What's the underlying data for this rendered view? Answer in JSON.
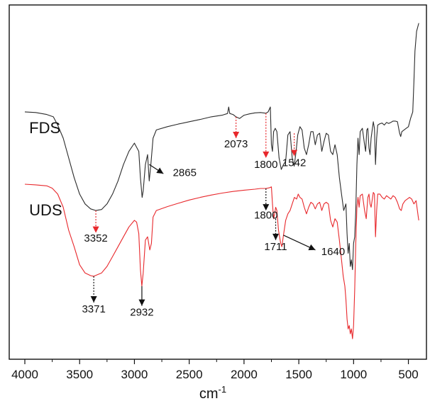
{
  "chart_data": {
    "type": "line",
    "xlabel": "cm",
    "xlabel_superscript": "-1",
    "xlim": [
      4000,
      400
    ],
    "x_reversed": true,
    "xticks": [
      4000,
      3500,
      3000,
      2500,
      2000,
      1500,
      1000,
      500
    ],
    "y_axis": "hidden",
    "colors": {
      "FDS": "#2b2b2b",
      "UDS": "#e8282c",
      "annotation_red": "#e8282c",
      "annotation_black": "#111111"
    },
    "series": [
      {
        "name": "FDS",
        "color": "#2b2b2b",
        "points": [
          [
            4000,
            0.72
          ],
          [
            3900,
            0.718
          ],
          [
            3800,
            0.712
          ],
          [
            3740,
            0.705
          ],
          [
            3700,
            0.68
          ],
          [
            3650,
            0.64
          ],
          [
            3600,
            0.58
          ],
          [
            3550,
            0.52
          ],
          [
            3500,
            0.47
          ],
          [
            3450,
            0.44
          ],
          [
            3400,
            0.425
          ],
          [
            3352,
            0.42
          ],
          [
            3300,
            0.423
          ],
          [
            3250,
            0.44
          ],
          [
            3200,
            0.47
          ],
          [
            3150,
            0.51
          ],
          [
            3100,
            0.56
          ],
          [
            3050,
            0.6
          ],
          [
            3000,
            0.625
          ],
          [
            2960,
            0.6
          ],
          [
            2945,
            0.52
          ],
          [
            2930,
            0.46
          ],
          [
            2920,
            0.48
          ],
          [
            2900,
            0.56
          ],
          [
            2880,
            0.59
          ],
          [
            2865,
            0.51
          ],
          [
            2850,
            0.56
          ],
          [
            2830,
            0.64
          ],
          [
            2800,
            0.665
          ],
          [
            2700,
            0.675
          ],
          [
            2600,
            0.683
          ],
          [
            2500,
            0.69
          ],
          [
            2400,
            0.697
          ],
          [
            2300,
            0.705
          ],
          [
            2200,
            0.71
          ],
          [
            2150,
            0.715
          ],
          [
            2140,
            0.735
          ],
          [
            2130,
            0.715
          ],
          [
            2100,
            0.712
          ],
          [
            2073,
            0.705
          ],
          [
            2040,
            0.7
          ],
          [
            2000,
            0.71
          ],
          [
            1950,
            0.714
          ],
          [
            1900,
            0.717
          ],
          [
            1850,
            0.718
          ],
          [
            1800,
            0.716
          ],
          [
            1780,
            0.72
          ],
          [
            1760,
            0.735
          ],
          [
            1750,
            0.62
          ],
          [
            1740,
            0.6
          ],
          [
            1730,
            0.66
          ],
          [
            1715,
            0.67
          ],
          [
            1700,
            0.66
          ],
          [
            1680,
            0.58
          ],
          [
            1660,
            0.545
          ],
          [
            1640,
            0.56
          ],
          [
            1620,
            0.57
          ],
          [
            1600,
            0.65
          ],
          [
            1580,
            0.66
          ],
          [
            1560,
            0.58
          ],
          [
            1542,
            0.555
          ],
          [
            1525,
            0.6
          ],
          [
            1510,
            0.65
          ],
          [
            1490,
            0.675
          ],
          [
            1470,
            0.665
          ],
          [
            1450,
            0.61
          ],
          [
            1430,
            0.59
          ],
          [
            1410,
            0.62
          ],
          [
            1390,
            0.66
          ],
          [
            1370,
            0.66
          ],
          [
            1350,
            0.62
          ],
          [
            1330,
            0.65
          ],
          [
            1310,
            0.655
          ],
          [
            1290,
            0.6
          ],
          [
            1270,
            0.63
          ],
          [
            1250,
            0.655
          ],
          [
            1230,
            0.65
          ],
          [
            1210,
            0.6
          ],
          [
            1190,
            0.59
          ],
          [
            1170,
            0.62
          ],
          [
            1150,
            0.59
          ],
          [
            1130,
            0.52
          ],
          [
            1110,
            0.47
          ],
          [
            1090,
            0.42
          ],
          [
            1070,
            0.44
          ],
          [
            1060,
            0.35
          ],
          [
            1050,
            0.29
          ],
          [
            1040,
            0.32
          ],
          [
            1030,
            0.25
          ],
          [
            1020,
            0.27
          ],
          [
            1010,
            0.24
          ],
          [
            1000,
            0.32
          ],
          [
            990,
            0.34
          ],
          [
            980,
            0.42
          ],
          [
            970,
            0.56
          ],
          [
            960,
            0.64
          ],
          [
            950,
            0.59
          ],
          [
            940,
            0.66
          ],
          [
            920,
            0.67
          ],
          [
            900,
            0.62
          ],
          [
            890,
            0.6
          ],
          [
            880,
            0.665
          ],
          [
            870,
            0.67
          ],
          [
            860,
            0.61
          ],
          [
            850,
            0.59
          ],
          [
            840,
            0.64
          ],
          [
            820,
            0.69
          ],
          [
            810,
            0.67
          ],
          [
            800,
            0.56
          ],
          [
            790,
            0.64
          ],
          [
            780,
            0.68
          ],
          [
            760,
            0.684
          ],
          [
            740,
            0.686
          ],
          [
            720,
            0.68
          ],
          [
            700,
            0.688
          ],
          [
            680,
            0.685
          ],
          [
            660,
            0.688
          ],
          [
            640,
            0.692
          ],
          [
            620,
            0.692
          ],
          [
            600,
            0.69
          ],
          [
            580,
            0.655
          ],
          [
            570,
            0.645
          ],
          [
            560,
            0.66
          ],
          [
            540,
            0.665
          ],
          [
            520,
            0.67
          ],
          [
            500,
            0.675
          ],
          [
            480,
            0.7
          ],
          [
            460,
            0.72
          ],
          [
            450,
            0.81
          ],
          [
            440,
            0.905
          ],
          [
            425,
            0.965
          ],
          [
            405,
            0.99
          ]
        ]
      },
      {
        "name": "UDS",
        "color": "#e8282c",
        "points": [
          [
            4000,
            0.5
          ],
          [
            3900,
            0.498
          ],
          [
            3800,
            0.495
          ],
          [
            3750,
            0.488
          ],
          [
            3700,
            0.47
          ],
          [
            3650,
            0.43
          ],
          [
            3600,
            0.36
          ],
          [
            3550,
            0.31
          ],
          [
            3500,
            0.255
          ],
          [
            3450,
            0.23
          ],
          [
            3400,
            0.222
          ],
          [
            3371,
            0.22
          ],
          [
            3300,
            0.23
          ],
          [
            3250,
            0.25
          ],
          [
            3200,
            0.28
          ],
          [
            3150,
            0.31
          ],
          [
            3100,
            0.34
          ],
          [
            3050,
            0.37
          ],
          [
            3000,
            0.39
          ],
          [
            2980,
            0.385
          ],
          [
            2960,
            0.35
          ],
          [
            2945,
            0.24
          ],
          [
            2932,
            0.19
          ],
          [
            2920,
            0.23
          ],
          [
            2900,
            0.33
          ],
          [
            2880,
            0.34
          ],
          [
            2860,
            0.3
          ],
          [
            2845,
            0.32
          ],
          [
            2830,
            0.4
          ],
          [
            2800,
            0.42
          ],
          [
            2700,
            0.432
          ],
          [
            2600,
            0.442
          ],
          [
            2500,
            0.452
          ],
          [
            2400,
            0.46
          ],
          [
            2300,
            0.467
          ],
          [
            2200,
            0.473
          ],
          [
            2100,
            0.478
          ],
          [
            2000,
            0.482
          ],
          [
            1900,
            0.485
          ],
          [
            1850,
            0.487
          ],
          [
            1800,
            0.487
          ],
          [
            1770,
            0.489
          ],
          [
            1750,
            0.492
          ],
          [
            1740,
            0.44
          ],
          [
            1730,
            0.395
          ],
          [
            1720,
            0.41
          ],
          [
            1711,
            0.43
          ],
          [
            1700,
            0.42
          ],
          [
            1685,
            0.36
          ],
          [
            1665,
            0.32
          ],
          [
            1655,
            0.31
          ],
          [
            1640,
            0.345
          ],
          [
            1620,
            0.39
          ],
          [
            1600,
            0.41
          ],
          [
            1580,
            0.42
          ],
          [
            1560,
            0.44
          ],
          [
            1540,
            0.46
          ],
          [
            1520,
            0.455
          ],
          [
            1505,
            0.47
          ],
          [
            1490,
            0.46
          ],
          [
            1470,
            0.455
          ],
          [
            1450,
            0.43
          ],
          [
            1430,
            0.41
          ],
          [
            1410,
            0.43
          ],
          [
            1390,
            0.445
          ],
          [
            1370,
            0.44
          ],
          [
            1350,
            0.425
          ],
          [
            1330,
            0.44
          ],
          [
            1310,
            0.445
          ],
          [
            1290,
            0.42
          ],
          [
            1270,
            0.44
          ],
          [
            1250,
            0.445
          ],
          [
            1230,
            0.44
          ],
          [
            1210,
            0.39
          ],
          [
            1190,
            0.37
          ],
          [
            1170,
            0.395
          ],
          [
            1150,
            0.385
          ],
          [
            1130,
            0.33
          ],
          [
            1110,
            0.27
          ],
          [
            1095,
            0.22
          ],
          [
            1080,
            0.19
          ],
          [
            1070,
            0.15
          ],
          [
            1060,
            0.09
          ],
          [
            1050,
            0.06
          ],
          [
            1040,
            0.07
          ],
          [
            1030,
            0.045
          ],
          [
            1020,
            0.06
          ],
          [
            1010,
            0.03
          ],
          [
            1000,
            0.07
          ],
          [
            990,
            0.18
          ],
          [
            980,
            0.32
          ],
          [
            970,
            0.43
          ],
          [
            960,
            0.46
          ],
          [
            950,
            0.43
          ],
          [
            940,
            0.465
          ],
          [
            920,
            0.47
          ],
          [
            900,
            0.42
          ],
          [
            885,
            0.395
          ],
          [
            870,
            0.46
          ],
          [
            860,
            0.47
          ],
          [
            850,
            0.44
          ],
          [
            840,
            0.43
          ],
          [
            820,
            0.475
          ],
          [
            810,
            0.47
          ],
          [
            800,
            0.34
          ],
          [
            790,
            0.42
          ],
          [
            780,
            0.47
          ],
          [
            760,
            0.47
          ],
          [
            740,
            0.46
          ],
          [
            720,
            0.455
          ],
          [
            700,
            0.465
          ],
          [
            680,
            0.46
          ],
          [
            660,
            0.455
          ],
          [
            640,
            0.465
          ],
          [
            620,
            0.46
          ],
          [
            600,
            0.445
          ],
          [
            580,
            0.425
          ],
          [
            565,
            0.42
          ],
          [
            550,
            0.44
          ],
          [
            530,
            0.45
          ],
          [
            510,
            0.455
          ],
          [
            490,
            0.46
          ],
          [
            470,
            0.455
          ],
          [
            450,
            0.44
          ],
          [
            430,
            0.45
          ],
          [
            410,
            0.4
          ],
          [
            405,
            0.39
          ]
        ]
      }
    ],
    "series_labels": [
      {
        "text": "FDS",
        "at_x": 3960,
        "at_y": 0.655
      },
      {
        "text": "UDS",
        "at_x": 3960,
        "at_y": 0.405
      }
    ],
    "annotations": [
      {
        "label": "3352",
        "x": 3352,
        "arrow_from_y": 0.42,
        "arrow_to_y": 0.352,
        "label_y": 0.325,
        "label_dx": 0,
        "style": "red-dotted"
      },
      {
        "label": "2865",
        "x": 2865,
        "arrow_from_y": 0.56,
        "arrow_to_y": 0.532,
        "arrow_dx": 20,
        "label_y": 0.525,
        "label_dx": 50,
        "style": "black-solid"
      },
      {
        "label": "2073",
        "x": 2073,
        "arrow_from_y": 0.705,
        "arrow_to_y": 0.64,
        "label_y": 0.612,
        "label_dx": 0,
        "style": "red-dotted"
      },
      {
        "label": "1800",
        "x": 1800,
        "arrow_from_y": 0.716,
        "arrow_to_y": 0.58,
        "label_y": 0.55,
        "label_dx": 0,
        "style": "red-dotted"
      },
      {
        "label": "1542",
        "x": 1542,
        "arrow_from_y": 0.655,
        "arrow_to_y": 0.585,
        "label_y": 0.555,
        "label_dx": 0,
        "style": "red-dotted"
      },
      {
        "label": "1800",
        "x": 1800,
        "arrow_from_y": 0.487,
        "arrow_to_y": 0.42,
        "label_y": 0.395,
        "label_dx": 0,
        "style": "black-dotted"
      },
      {
        "label": "1711",
        "x": 1711,
        "arrow_from_y": 0.395,
        "arrow_to_y": 0.33,
        "label_y": 0.3,
        "label_dx": 0,
        "style": "black-dotted"
      },
      {
        "label": "1640",
        "x": 1640,
        "arrow_from_y": 0.345,
        "arrow_to_y": 0.3,
        "arrow_dx": 45,
        "label_y": 0.285,
        "label_dx": 70,
        "style": "black-solid"
      },
      {
        "label": "3371",
        "x": 3371,
        "arrow_from_y": 0.22,
        "arrow_to_y": 0.14,
        "label_y": 0.11,
        "label_dx": 0,
        "style": "black-dotted"
      },
      {
        "label": "2932",
        "x": 2932,
        "arrow_from_y": 0.19,
        "arrow_to_y": 0.13,
        "label_y": 0.1,
        "label_dx": 0,
        "style": "black-solid"
      }
    ]
  }
}
